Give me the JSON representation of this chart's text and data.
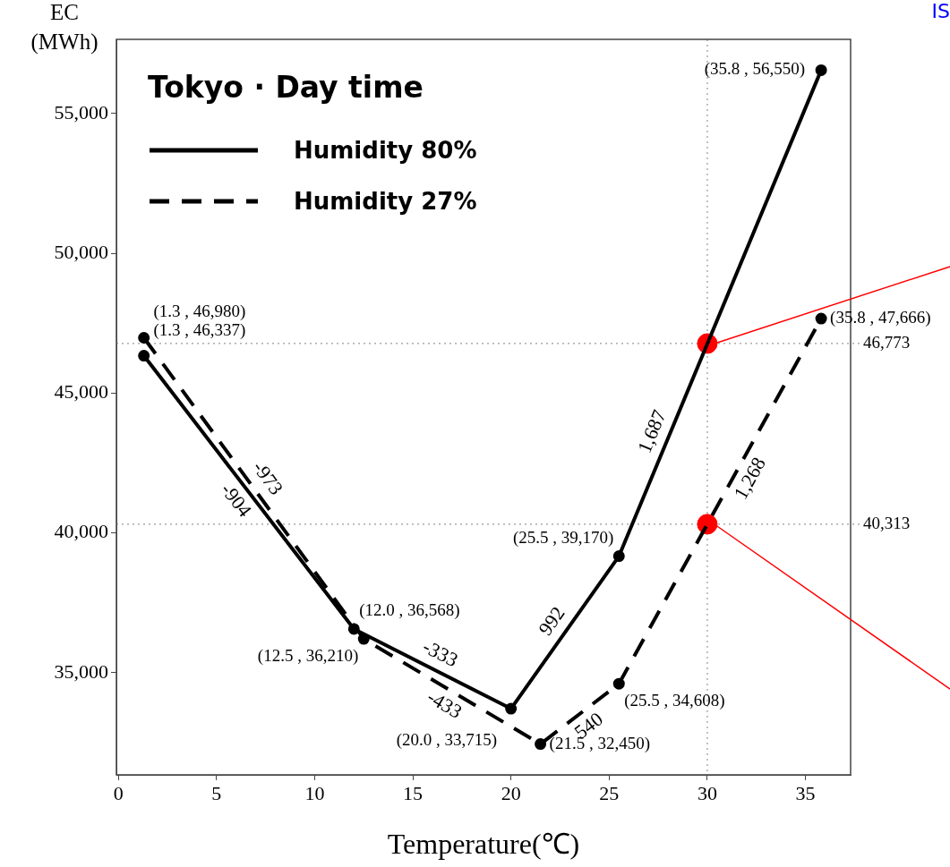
{
  "chart_data": {
    "type": "line",
    "title": "Tokyo · Day time",
    "xlabel": "Temperature(℃)",
    "ylabel": "EC (MWh)",
    "xlim": [
      -0.1,
      37.3
    ],
    "ylim": [
      31350,
      57650
    ],
    "xticks": [
      0,
      5,
      10,
      15,
      20,
      25,
      30,
      35
    ],
    "yticks": [
      {
        "value": 35000,
        "label": "35,000"
      },
      {
        "value": 40000,
        "label": "40,000"
      },
      {
        "value": 45000,
        "label": "45,000"
      },
      {
        "value": 50000,
        "label": "50,000"
      },
      {
        "value": 55000,
        "label": "55,000"
      }
    ],
    "legend": "top left",
    "marker": "circle",
    "series": [
      {
        "name": "Humidity 80%",
        "color": "#000000",
        "line_style": "solid",
        "x": [
          1.3,
          12.0,
          20.0,
          25.5,
          35.8
        ],
        "values": [
          46337,
          36568,
          33715,
          39170,
          56550
        ],
        "value_labels": [
          "(1.3 , 46,337)",
          "(12.0 , 36,568)",
          "(20.0 , 33,715)",
          "(25.5 , 39,170)",
          "(35.8 , 56,550)"
        ]
      },
      {
        "name": "Humidity 27%",
        "color": "#000000",
        "line_style": "dashed",
        "x": [
          1.3,
          12.5,
          21.5,
          25.5,
          35.8
        ],
        "values": [
          46980,
          36210,
          32450,
          34608,
          47666
        ],
        "value_labels": [
          "(1.3 , 46,980)",
          "(12.5 , 36,210)",
          "(21.5 , 32,450)",
          "(25.5 , 34,608)",
          "(35.8 , 47,666)"
        ]
      },
      {
        "type": "scatter",
        "color": "#ff0000",
        "x": [
          30,
          30
        ],
        "values": [
          46773,
          40313
        ]
      }
    ],
    "ref_lines": [
      {
        "axis": "y",
        "value": 46773,
        "label": "46,773",
        "color": "#999999",
        "line_style": "dotted"
      },
      {
        "axis": "y",
        "value": 40313,
        "label": "40,313",
        "color": "#999999",
        "line_style": "dotted"
      },
      {
        "axis": "x",
        "value": 30,
        "color": "#999999",
        "line_style": "dotted"
      }
    ],
    "annotations": [
      {
        "text": "-904",
        "x": 6.6,
        "y": 41500
      },
      {
        "text": "-973",
        "x": 6.9,
        "y": 41600
      },
      {
        "text": "-333",
        "x": 16,
        "y": 35140
      },
      {
        "text": "-433",
        "x": 17,
        "y": 34330
      },
      {
        "text": "992",
        "x": 22.8,
        "y": 36490
      },
      {
        "text": "540",
        "x": 23.5,
        "y": 33530
      },
      {
        "text": "1,687",
        "x": 28,
        "y": 43390
      },
      {
        "text": "1,268",
        "x": 31.5,
        "y": 42210
      },
      "IS"
    ]
  }
}
